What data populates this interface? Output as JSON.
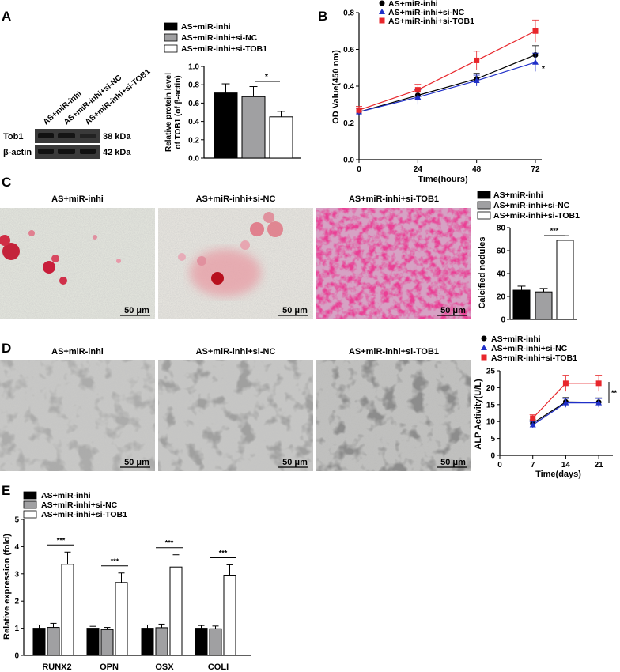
{
  "panels": {
    "a": {
      "letter": "A",
      "blot": {
        "lanes": [
          "AS+miR-inhi",
          "AS+miR-inhi+si-NC",
          "AS+miR-inhi+si-TOB1"
        ],
        "row1_label": "Tob1",
        "row1_kda": "38 kDa",
        "row2_label": "β-actin",
        "row2_kda": "42 kDa"
      }
    },
    "b": {
      "letter": "B"
    },
    "c": {
      "letter": "C",
      "micro_titles": [
        "AS+miR-inhi",
        "AS+miR-inhi+si-NC",
        "AS+miR-inhi+si-TOB1"
      ],
      "scale": "50 μm"
    },
    "d": {
      "letter": "D",
      "micro_titles": [
        "AS+miR-inhi",
        "AS+miR-inhi+si-NC",
        "AS+miR-inhi+si-TOB1"
      ],
      "scale": "50 μm"
    },
    "e": {
      "letter": "E"
    }
  },
  "colors": {
    "black": "#000000",
    "gray": "#a0a0a2",
    "white": "#ffffff",
    "red": "#e8262b",
    "blue": "#1f2fc8"
  },
  "chart_data": [
    {
      "id": "a",
      "type": "bar",
      "categories": [
        "AS+miR-inhi",
        "AS+miR-inhi+si-NC",
        "AS+miR-inhi+si-TOB1"
      ],
      "values": [
        0.71,
        0.67,
        0.45
      ],
      "errors": [
        0.1,
        0.11,
        0.06
      ],
      "ylabel": "Relative protein level\nof TOB1 (of β-actin)",
      "ylim": [
        0,
        1.0
      ],
      "yticks": [
        "0.0",
        "0.2",
        "0.4",
        "0.6",
        "0.8",
        "1.0"
      ],
      "legend": [
        "AS+miR-inhi",
        "AS+miR-inhi+si-NC",
        "AS+miR-inhi+si-TOB1"
      ],
      "sig": "*"
    },
    {
      "id": "b",
      "type": "line",
      "x": [
        0,
        24,
        48,
        72
      ],
      "xticks": [
        "0",
        "24",
        "48",
        "72"
      ],
      "xlabel": "Time(hours)",
      "ylabel": "OD Value(450 nm)",
      "ylim": [
        0,
        0.8
      ],
      "yticks": [
        "0.0",
        "0.2",
        "0.4",
        "0.6",
        "0.8"
      ],
      "series": [
        {
          "name": "AS+miR-inhi",
          "values": [
            0.26,
            0.35,
            0.44,
            0.57
          ],
          "errors": [
            0.02,
            0.03,
            0.03,
            0.05
          ]
        },
        {
          "name": "AS+miR-inhi+si-NC",
          "values": [
            0.26,
            0.34,
            0.43,
            0.53
          ],
          "errors": [
            0.02,
            0.04,
            0.03,
            0.05
          ]
        },
        {
          "name": "AS+miR-inhi+si-TOB1",
          "values": [
            0.27,
            0.38,
            0.54,
            0.7
          ],
          "errors": [
            0.02,
            0.03,
            0.05,
            0.06
          ]
        }
      ],
      "sig": "*"
    },
    {
      "id": "c",
      "type": "bar",
      "categories": [
        "AS+miR-inhi",
        "AS+miR-inhi+si-NC",
        "AS+miR-inhi+si-TOB1"
      ],
      "values": [
        25.5,
        24.0,
        69.0
      ],
      "errors": [
        3.5,
        3.0,
        4.0
      ],
      "ylabel": "Calcified nodules",
      "ylim": [
        0,
        80
      ],
      "yticks": [
        "0",
        "20",
        "40",
        "60",
        "80"
      ],
      "legend": [
        "AS+miR-inhi",
        "AS+miR-inhi+si-NC",
        "AS+miR-inhi+si-TOB1"
      ],
      "sig": "***"
    },
    {
      "id": "d",
      "type": "line",
      "x": [
        7,
        14,
        21
      ],
      "xticks": [
        "0",
        "7",
        "14",
        "21"
      ],
      "xlabel": "Time(days)",
      "ylabel": "ALP Activity(U/L)",
      "xlim": [
        0,
        24
      ],
      "ylim": [
        0,
        25
      ],
      "yticks": [
        "0",
        "5",
        "10",
        "15",
        "20",
        "25"
      ],
      "series": [
        {
          "name": "AS+miR-inhi",
          "values": [
            9.5,
            15.8,
            15.7
          ],
          "errors": [
            1.0,
            1.3,
            1.3
          ]
        },
        {
          "name": "AS+miR-inhi+si-NC",
          "values": [
            9.0,
            15.5,
            15.5
          ],
          "errors": [
            1.0,
            1.3,
            1.3
          ]
        },
        {
          "name": "AS+miR-inhi+si-TOB1",
          "values": [
            11.0,
            21.3,
            21.3
          ],
          "errors": [
            1.0,
            2.4,
            2.4
          ]
        }
      ],
      "sig": "**"
    },
    {
      "id": "e",
      "type": "bar",
      "categories": [
        "RUNX2",
        "OPN",
        "OSX",
        "COLI"
      ],
      "series": [
        {
          "name": "AS+miR-inhi",
          "values": [
            1.0,
            1.0,
            1.0,
            1.0
          ],
          "errors": [
            0.12,
            0.07,
            0.12,
            0.1
          ]
        },
        {
          "name": "AS+miR-inhi+si-NC",
          "values": [
            1.03,
            0.95,
            1.02,
            0.98
          ],
          "errors": [
            0.15,
            0.08,
            0.13,
            0.1
          ]
        },
        {
          "name": "AS+miR-inhi+si-TOB1",
          "values": [
            3.35,
            2.68,
            3.25,
            2.95
          ],
          "errors": [
            0.45,
            0.35,
            0.45,
            0.38
          ]
        }
      ],
      "ylabel": "Relative expression (fold)",
      "ylim": [
        0,
        5
      ],
      "yticks": [
        "0",
        "1",
        "2",
        "3",
        "4",
        "5"
      ],
      "sig": [
        "***",
        "***",
        "***",
        "***"
      ]
    }
  ]
}
